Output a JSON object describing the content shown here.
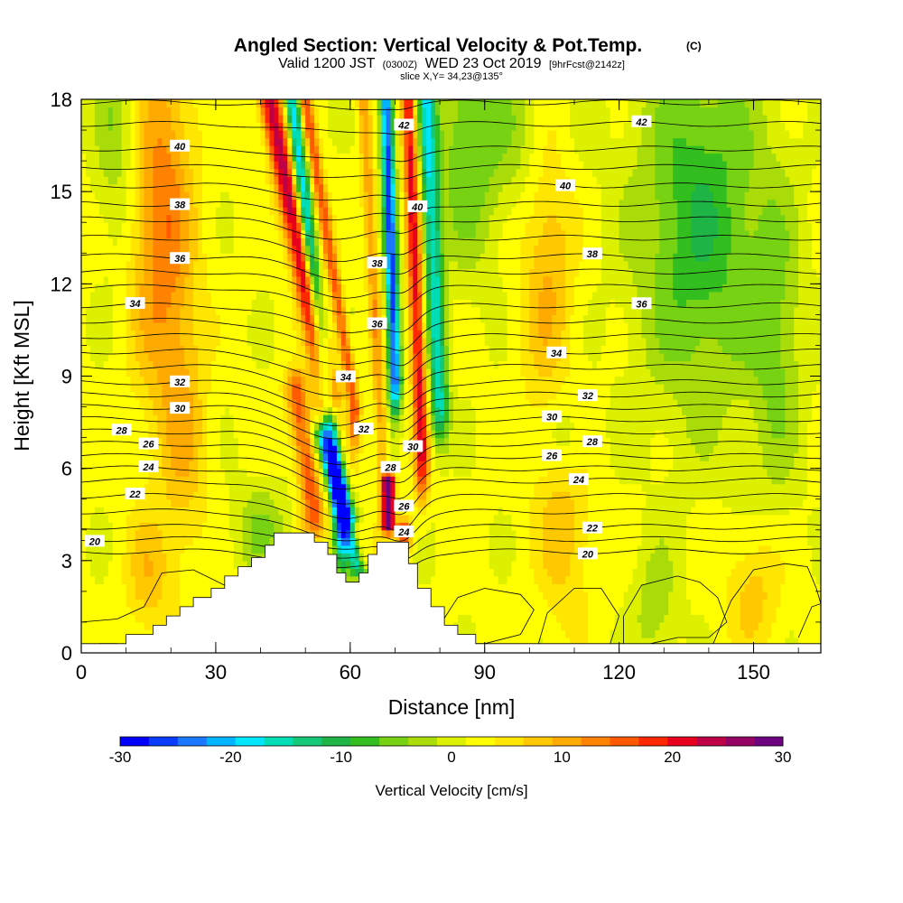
{
  "title": {
    "main": "Angled Section: Vertical Velocity & Pot.Temp.",
    "main_suffix": "(C)",
    "valid_a": "Valid 1200 JST",
    "valid_b": "(0300Z)",
    "valid_c": "WED 23 Oct 2019",
    "valid_d": "[9hrFcst@2142z]",
    "slice": "slice X,Y= 34,23@135°"
  },
  "colors": {
    "scale": [
      "#0000ff",
      "#0a3cff",
      "#1a78ff",
      "#00b4ff",
      "#00e6ff",
      "#00dcb4",
      "#14c878",
      "#1eb446",
      "#32be1e",
      "#78d214",
      "#aadc0a",
      "#dcf000",
      "#ffff00",
      "#ffe600",
      "#ffc800",
      "#ffaa00",
      "#ff8200",
      "#ff5a00",
      "#ff2800",
      "#e6001e",
      "#be0046",
      "#960064",
      "#6e0082"
    ],
    "terrain": "#ffffff",
    "contour": "#000000"
  },
  "chart_data": {
    "type": "heatmap",
    "xlabel": "Distance [nm]",
    "ylabel": "Height [Kft MSL]",
    "xlim": [
      0,
      165
    ],
    "ylim": [
      0,
      18
    ],
    "xticks": [
      0,
      30,
      60,
      90,
      120,
      150
    ],
    "yticks": [
      0,
      3,
      6,
      9,
      12,
      15,
      18
    ],
    "colorbar": {
      "title": "Vertical Velocity [cm/s]",
      "min": -30,
      "max": 30,
      "tick_values": [
        -30,
        -20,
        -10,
        0,
        10,
        20,
        30
      ],
      "tick_labels": [
        "-30",
        "-20",
        "-10",
        "0",
        "10",
        "20",
        "30"
      ]
    },
    "terrain_profile": [
      [
        0,
        0.3
      ],
      [
        10,
        0.3
      ],
      [
        10,
        0.6
      ],
      [
        16,
        0.6
      ],
      [
        16,
        0.9
      ],
      [
        19,
        0.9
      ],
      [
        19,
        1.2
      ],
      [
        22,
        1.2
      ],
      [
        22,
        1.5
      ],
      [
        25,
        1.5
      ],
      [
        25,
        1.8
      ],
      [
        29,
        1.8
      ],
      [
        29,
        2.1
      ],
      [
        32,
        2.1
      ],
      [
        32,
        2.5
      ],
      [
        35,
        2.5
      ],
      [
        35,
        2.8
      ],
      [
        38,
        2.8
      ],
      [
        38,
        3.1
      ],
      [
        41,
        3.1
      ],
      [
        41,
        3.5
      ],
      [
        43,
        3.5
      ],
      [
        43,
        3.9
      ],
      [
        52,
        3.9
      ],
      [
        52,
        3.6
      ],
      [
        55,
        3.6
      ],
      [
        55,
        3.2
      ],
      [
        57,
        3.2
      ],
      [
        57,
        2.6
      ],
      [
        59,
        2.6
      ],
      [
        59,
        2.3
      ],
      [
        62,
        2.3
      ],
      [
        62,
        2.6
      ],
      [
        64,
        2.6
      ],
      [
        64,
        3.2
      ],
      [
        66,
        3.2
      ],
      [
        66,
        3.6
      ],
      [
        73,
        3.6
      ],
      [
        73,
        2.9
      ],
      [
        75,
        2.9
      ],
      [
        75,
        2.1
      ],
      [
        78,
        2.1
      ],
      [
        78,
        1.5
      ],
      [
        81,
        1.5
      ],
      [
        81,
        0.9
      ],
      [
        84,
        0.9
      ],
      [
        84,
        0.6
      ],
      [
        88,
        0.6
      ],
      [
        88,
        0.3
      ],
      [
        165,
        0.3
      ]
    ],
    "velocity_features": [
      {
        "x": 18,
        "z": 14,
        "w": 12,
        "sx": 7,
        "sz": 6
      },
      {
        "x": 23,
        "z": 7,
        "w": 6,
        "sx": 5,
        "sz": 4
      },
      {
        "x": 104,
        "z": 13.5,
        "w": 8,
        "sx": 6,
        "sz": 6
      },
      {
        "x": 108,
        "z": 4,
        "w": 6,
        "sx": 6,
        "sz": 3
      },
      {
        "x": 15,
        "z": 2.5,
        "w": 6,
        "sx": 5,
        "sz": 2
      },
      {
        "x": 63,
        "z": 1.5,
        "w": 5,
        "sx": 6,
        "sz": 2
      },
      {
        "x": 150,
        "z": 2,
        "w": 6,
        "sx": 6,
        "sz": 2
      },
      {
        "x": 8,
        "z": 17,
        "w": -6,
        "sx": 5,
        "sz": 4
      },
      {
        "x": 138,
        "z": 14,
        "w": -11,
        "sx": 14,
        "sz": 6
      },
      {
        "x": 155,
        "z": 10,
        "w": -6,
        "sx": 6,
        "sz": 5
      },
      {
        "x": 100,
        "z": 17,
        "w": -6,
        "sx": 10,
        "sz": 3
      },
      {
        "x": 86,
        "z": 16.5,
        "w": -8,
        "sx": 7,
        "sz": 4
      },
      {
        "x": 40,
        "z": 4,
        "w": -6,
        "sx": 6,
        "sz": 1.5
      },
      {
        "x": 108,
        "z": 7,
        "w": -5,
        "sx": 5,
        "sz": 1.5
      },
      {
        "x": 128,
        "z": 1.5,
        "w": -5,
        "sx": 5,
        "sz": 2
      }
    ],
    "velocity_bands": [
      {
        "x0": 42,
        "x1": 55,
        "z0": 18,
        "z1": 8.5,
        "w": 22,
        "sx": 2.5,
        "sz": 6
      },
      {
        "x0": 48,
        "x1": 52,
        "z0": 8.5,
        "z1": 4.5,
        "w": 14,
        "sx": 2.5,
        "sz": 3
      },
      {
        "x0": 47,
        "x1": 58,
        "z0": 18,
        "z1": 4.5,
        "w": -22,
        "sx": 1.6,
        "sz": 8
      },
      {
        "x0": 54,
        "x1": 62,
        "z0": 7,
        "z1": 3,
        "w": -26,
        "sx": 2.2,
        "sz": 2.5
      },
      {
        "x0": 50,
        "x1": 61,
        "z0": 18,
        "z1": 8,
        "w": 14,
        "sx": 1.4,
        "sz": 6
      },
      {
        "x0": 63,
        "x1": 67,
        "z0": 18,
        "z1": 7,
        "w": 9,
        "sx": 1.4,
        "sz": 6
      },
      {
        "x0": 68,
        "x1": 70,
        "z0": 18,
        "z1": 9,
        "w": -28,
        "sx": 1.4,
        "sz": 5
      },
      {
        "x0": 73,
        "x1": 76,
        "z0": 18,
        "z1": 6.5,
        "w": 19,
        "sx": 1.6,
        "sz": 6
      },
      {
        "x0": 77,
        "x1": 80,
        "z0": 18,
        "z1": 8,
        "w": -18,
        "sx": 2,
        "sz": 5
      },
      {
        "x0": 68.5,
        "x1": 68.5,
        "z0": 5.6,
        "z1": 4.2,
        "w": 30,
        "sx": 1.4,
        "sz": 1.2
      },
      {
        "x0": 61,
        "x1": 63,
        "z0": 4,
        "z1": 3,
        "w": 16,
        "sx": 1.5,
        "sz": 1
      },
      {
        "x0": 72,
        "x1": 72,
        "z0": 4.2,
        "z1": 3.5,
        "w": 15,
        "sx": 1.5,
        "sz": 0.8
      }
    ],
    "isentropes": [
      {
        "base": 18.8,
        "pert": -0.2,
        "labels": []
      },
      {
        "base": 17.9,
        "pert": -0.2,
        "labels": []
      },
      {
        "base": 17.2,
        "pert": -0.3,
        "labels": [
          {
            "text": "42",
            "x": 72,
            "shift": 0.3
          },
          {
            "text": "42",
            "x": 125
          }
        ]
      },
      {
        "base": 16.4,
        "pert": -0.4,
        "labels": [
          {
            "text": "40",
            "x": 22
          }
        ]
      },
      {
        "base": 15.8,
        "pert": -0.4,
        "labels": []
      },
      {
        "base": 15.2,
        "pert": -0.5,
        "labels": [
          {
            "text": "40",
            "x": 75,
            "shift": -0.4
          },
          {
            "text": "40",
            "x": 108
          }
        ]
      },
      {
        "base": 14.6,
        "pert": -0.5,
        "labels": [
          {
            "text": "38",
            "x": 22
          }
        ]
      },
      {
        "base": 14.1,
        "pert": -0.6,
        "labels": []
      },
      {
        "base": 13.5,
        "pert": -0.7,
        "labels": [
          {
            "text": "38",
            "x": 66,
            "shift": -0.3
          }
        ]
      },
      {
        "base": 12.9,
        "pert": -0.7,
        "labels": [
          {
            "text": "36",
            "x": 22
          },
          {
            "text": "38",
            "x": 114
          }
        ]
      },
      {
        "base": 12.4,
        "pert": -0.8,
        "labels": []
      },
      {
        "base": 11.9,
        "pert": -0.8,
        "labels": [
          {
            "text": "36",
            "x": 66,
            "shift": -0.5
          }
        ]
      },
      {
        "base": 11.3,
        "pert": -0.9,
        "labels": [
          {
            "text": "34",
            "x": 12
          },
          {
            "text": "36",
            "x": 125
          }
        ]
      },
      {
        "base": 10.8,
        "pert": -1.0,
        "labels": []
      },
      {
        "base": 10.3,
        "pert": -1.0,
        "labels": [
          {
            "text": "34",
            "x": 59,
            "shift": -0.4
          }
        ]
      },
      {
        "base": 9.8,
        "pert": -1.0,
        "labels": [
          {
            "text": "34",
            "x": 106
          }
        ]
      },
      {
        "base": 9.3,
        "pert": -1.0,
        "labels": []
      },
      {
        "base": 8.8,
        "pert": -1.0,
        "labels": [
          {
            "text": "32",
            "x": 22
          }
        ]
      },
      {
        "base": 8.4,
        "pert": -1.0,
        "labels": [
          {
            "text": "32",
            "x": 63,
            "shift": -0.3
          },
          {
            "text": "32",
            "x": 113
          }
        ]
      },
      {
        "base": 8.0,
        "pert": -1.0,
        "labels": [
          {
            "text": "30",
            "x": 22
          }
        ]
      },
      {
        "base": 7.6,
        "pert": -1.0,
        "labels": [
          {
            "text": "30",
            "x": 74,
            "shift": -0.3
          },
          {
            "text": "30",
            "x": 105
          }
        ]
      },
      {
        "base": 7.2,
        "pert": -1.0,
        "labels": [
          {
            "text": "28",
            "x": 9
          },
          {
            "text": "28",
            "x": 69,
            "shift": -0.4
          }
        ]
      },
      {
        "base": 6.8,
        "pert": -1.0,
        "labels": [
          {
            "text": "26",
            "x": 15
          },
          {
            "text": "28",
            "x": 114
          }
        ]
      },
      {
        "base": 6.4,
        "pert": -1.0,
        "labels": [
          {
            "text": "26",
            "x": 72,
            "shift": -0.8
          },
          {
            "text": "26",
            "x": 105
          }
        ]
      },
      {
        "base": 6.0,
        "pert": -1.1,
        "labels": [
          {
            "text": "24",
            "x": 15
          }
        ]
      },
      {
        "base": 5.6,
        "pert": -1.2,
        "labels": [
          {
            "text": "24",
            "x": 72,
            "shift": -0.6
          },
          {
            "text": "24",
            "x": 111
          }
        ]
      },
      {
        "base": 5.1,
        "pert": -1.2,
        "labels": [
          {
            "text": "22",
            "x": 12
          }
        ]
      },
      {
        "base": 4.6,
        "pert": -1.0,
        "labels": []
      },
      {
        "base": 4.1,
        "pert": -0.8,
        "labels": [
          {
            "text": "22",
            "x": 114
          }
        ]
      },
      {
        "base": 3.7,
        "pert": -0.7,
        "labels": [
          {
            "text": "20",
            "x": 3
          }
        ]
      },
      {
        "base": 3.3,
        "pert": -0.6,
        "labels": [
          {
            "text": "20",
            "x": 113
          }
        ]
      }
    ],
    "closed_contours": [
      [
        [
          0,
          1.0
        ],
        [
          8,
          1.1
        ],
        [
          14,
          1.5
        ],
        [
          18,
          2.6
        ],
        [
          25,
          2.7
        ],
        [
          32,
          2.2
        ],
        [
          34,
          0.3
        ]
      ],
      [
        [
          0,
          0.1
        ],
        [
          4,
          0.3
        ],
        [
          8,
          0.3
        ]
      ],
      [
        [
          80,
          0.9
        ],
        [
          84,
          1.8
        ],
        [
          90,
          2.1
        ],
        [
          98,
          1.9
        ],
        [
          101,
          1.4
        ],
        [
          98,
          0.6
        ],
        [
          90,
          0.3
        ],
        [
          84,
          0.3
        ],
        [
          80,
          0.9
        ]
      ],
      [
        [
          102,
          0.3
        ],
        [
          104,
          1.3
        ],
        [
          110,
          2.1
        ],
        [
          116,
          2.1
        ],
        [
          120,
          1.2
        ],
        [
          118,
          0.3
        ]
      ],
      [
        [
          121,
          0.3
        ],
        [
          121,
          1.2
        ],
        [
          125,
          2.2
        ],
        [
          133,
          2.5
        ],
        [
          138,
          2.3
        ],
        [
          142,
          1.8
        ],
        [
          144,
          1.0
        ],
        [
          140,
          0.5
        ],
        [
          133,
          0.5
        ],
        [
          127,
          0.3
        ]
      ],
      [
        [
          141,
          0.3
        ],
        [
          145,
          1.7
        ],
        [
          150,
          2.7
        ],
        [
          157,
          2.9
        ],
        [
          162,
          2.8
        ],
        [
          164,
          2.1
        ],
        [
          165,
          1.6
        ]
      ],
      [
        [
          160,
          0.5
        ],
        [
          163,
          1.5
        ],
        [
          165,
          1.6
        ]
      ]
    ]
  }
}
